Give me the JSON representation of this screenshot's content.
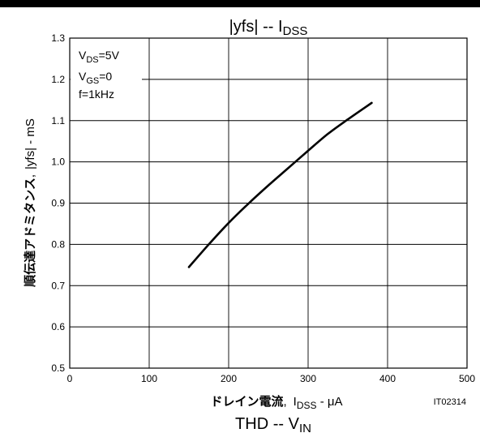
{
  "chart_data": {
    "type": "line",
    "title": {
      "bar_open": "|",
      "main": "yfs",
      "bar_close": "|",
      "sep": " -- ",
      "x_sym": "I",
      "x_sub": "DSS"
    },
    "next_title": {
      "main": "THD -- V",
      "sub": "IN"
    },
    "conditions": [
      {
        "sym": "V",
        "sub": "DS",
        "rest": "=5V"
      },
      {
        "sym": "V",
        "sub": "GS",
        "rest": "=0"
      },
      {
        "sym": "f=1kHz",
        "sub": "",
        "rest": ""
      }
    ],
    "xlabel": {
      "jp": "ドレイン電流",
      "comma": ",",
      "sym": "I",
      "sub": "DSS",
      "unit": " - μA"
    },
    "ylabel": {
      "jp": "順伝達アドミタンス",
      "comma": ",",
      "bar_open": "|",
      "sym": "yfs",
      "bar_close": "|",
      "unit": " - mS"
    },
    "figure_code": "IT02314",
    "xlim": [
      0,
      500
    ],
    "ylim": [
      0.5,
      1.3
    ],
    "x_ticks": [
      "0",
      "100",
      "200",
      "300",
      "400",
      "500"
    ],
    "y_ticks": [
      "0.5",
      "0.6",
      "0.7",
      "0.8",
      "0.9",
      "1.0",
      "1.1",
      "1.2",
      "1.3"
    ],
    "grid": true,
    "series": [
      {
        "x": [
          150,
          175,
          200,
          225,
          250,
          275,
          300,
          325,
          350,
          380
        ],
        "y": [
          0.745,
          0.8,
          0.852,
          0.899,
          0.943,
          0.985,
          1.027,
          1.068,
          1.103,
          1.143
        ]
      }
    ]
  }
}
